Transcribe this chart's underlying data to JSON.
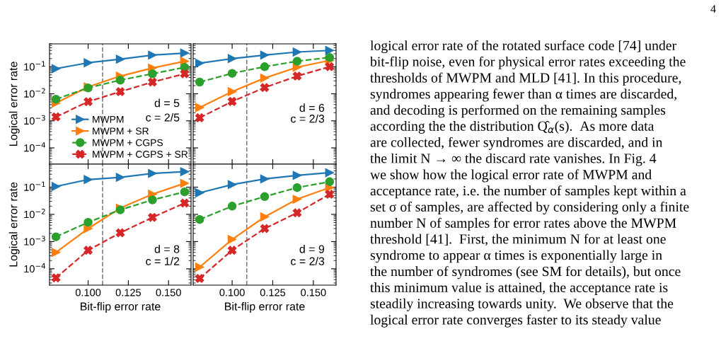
{
  "chart_data": [
    {
      "type": "line",
      "x": [
        0.08,
        0.1,
        0.12,
        0.14,
        0.16
      ],
      "log": "y",
      "grid": false,
      "legend": "bottom",
      "tick_labels": "y",
      "ylabel": "Logical error rate",
      "xlim": [
        0.076,
        0.164
      ],
      "ylim": [
        2.5e-05,
        0.7
      ],
      "xticks": [
        {
          "value": 0.1,
          "label": null
        },
        {
          "value": 0.125,
          "label": null
        },
        {
          "value": 0.15,
          "label": null
        }
      ],
      "yticks": [
        {
          "value": 0.0001,
          "label": "10$^{−4}$"
        },
        {
          "value": 0.001,
          "label": "10$^{−3}$"
        },
        {
          "value": 0.01,
          "label": "10$^{−2}$"
        },
        {
          "value": 0.1,
          "label": "10$^{−1}$"
        }
      ],
      "ref_lines": [
        {
          "axis": "x",
          "value": 0.109,
          "color": "#808080",
          "line_style": "dashed"
        }
      ],
      "annotations": [
        "d = 5",
        "c = 2/5"
      ],
      "series": [
        {
          "name": "MWPM",
          "color": "#1f77b4",
          "marker": "triangle",
          "line_style": "solid",
          "values": [
            0.085,
            0.14,
            0.19,
            0.27,
            0.32
          ]
        },
        {
          "name": "MWPM + SR",
          "color": "#ff7f0e",
          "marker": "triangle",
          "line_style": "solid",
          "values": [
            0.0045,
            0.018,
            0.045,
            0.09,
            0.16
          ]
        },
        {
          "name": "MWPM + CGPS",
          "color": "#2ca02c",
          "marker": "circle",
          "line_style": "dashed",
          "values": [
            0.0063,
            0.0165,
            0.032,
            0.055,
            0.095
          ]
        },
        {
          "name": "MWPM + CGPS + SR",
          "color": "#d62728",
          "marker": "cross",
          "line_style": "dashed",
          "values": [
            0.0014,
            0.0051,
            0.012,
            0.027,
            0.055
          ]
        }
      ]
    },
    {
      "type": "line",
      "x": [
        0.08,
        0.1,
        0.12,
        0.14,
        0.16
      ],
      "log": "y",
      "grid": false,
      "tick_labels": false,
      "xlim": [
        0.076,
        0.164
      ],
      "ylim": [
        2.5e-05,
        0.7
      ],
      "xticks": [
        {
          "value": 0.1,
          "label": null
        },
        {
          "value": 0.125,
          "label": null
        },
        {
          "value": 0.15,
          "label": null
        }
      ],
      "yticks": [
        {
          "value": 0.0001,
          "label": null
        },
        {
          "value": 0.001,
          "label": null
        },
        {
          "value": 0.01,
          "label": null
        },
        {
          "value": 0.1,
          "label": null
        }
      ],
      "ref_lines": [
        {
          "axis": "x",
          "value": 0.109,
          "color": "#808080",
          "line_style": "dashed"
        }
      ],
      "annotations": [
        "d = 6",
        "c = 2/3"
      ],
      "series": [
        {
          "color": "#1f77b4",
          "marker": "triangle",
          "line_style": "solid",
          "values": [
            0.135,
            0.2,
            0.27,
            0.35,
            0.4
          ]
        },
        {
          "color": "#ff7f0e",
          "marker": "triangle",
          "line_style": "solid",
          "values": [
            0.0031,
            0.012,
            0.038,
            0.096,
            0.17
          ]
        },
        {
          "color": "#2ca02c",
          "marker": "circle",
          "line_style": "dashed",
          "values": [
            0.027,
            0.057,
            0.1,
            0.16,
            0.22
          ]
        },
        {
          "color": "#d62728",
          "marker": "cross",
          "line_style": "dashed",
          "values": [
            0.0013,
            0.0052,
            0.017,
            0.045,
            0.1
          ]
        }
      ]
    },
    {
      "type": "line",
      "x": [
        0.08,
        0.1,
        0.12,
        0.14,
        0.16
      ],
      "log": "y",
      "grid": false,
      "xlabel": "Bit-flip error rate",
      "ylabel": "Logical error rate",
      "xlim": [
        0.076,
        0.164
      ],
      "ylim": [
        2.5e-05,
        0.7
      ],
      "xticks": [
        {
          "value": 0.1,
          "label": "0.100"
        },
        {
          "value": 0.125,
          "label": "0.125"
        },
        {
          "value": 0.15,
          "label": "0.150"
        }
      ],
      "yticks": [
        {
          "value": 0.0001,
          "label": "10$^{−4}$"
        },
        {
          "value": 0.001,
          "label": "10$^{−3}$"
        },
        {
          "value": 0.01,
          "label": "10$^{−2}$"
        },
        {
          "value": 0.1,
          "label": "10$^{−1}$"
        }
      ],
      "ref_lines": [
        {
          "axis": "x",
          "value": 0.109,
          "color": "#808080",
          "line_style": "dashed"
        }
      ],
      "annotations": [
        "d = 8",
        "c = 1/2"
      ],
      "series": [
        {
          "color": "#1f77b4",
          "marker": "triangle",
          "line_style": "solid",
          "values": [
            0.106,
            0.19,
            0.23,
            0.32,
            0.37
          ]
        },
        {
          "color": "#ff7f0e",
          "marker": "triangle",
          "line_style": "solid",
          "values": [
            0.0004,
            0.003,
            0.017,
            0.055,
            0.138
          ]
        },
        {
          "color": "#2ca02c",
          "marker": "circle",
          "line_style": "dashed",
          "values": [
            0.0015,
            0.0051,
            0.0147,
            0.034,
            0.067
          ]
        },
        {
          "color": "#d62728",
          "marker": "cross",
          "line_style": "dashed",
          "values": [
            4.6e-05,
            0.00048,
            0.0021,
            0.0077,
            0.026
          ]
        }
      ]
    },
    {
      "type": "line",
      "x": [
        0.08,
        0.1,
        0.12,
        0.14,
        0.16
      ],
      "log": "y",
      "grid": false,
      "tick_labels": "x",
      "xlabel": "Bit-flip error rate",
      "xlim": [
        0.076,
        0.164
      ],
      "ylim": [
        2.5e-05,
        0.7
      ],
      "xticks": [
        {
          "value": 0.1,
          "label": "0.100"
        },
        {
          "value": 0.125,
          "label": "0.125"
        },
        {
          "value": 0.15,
          "label": "0.150"
        }
      ],
      "yticks": [
        {
          "value": 0.0001,
          "label": null
        },
        {
          "value": 0.001,
          "label": null
        },
        {
          "value": 0.01,
          "label": null
        },
        {
          "value": 0.1,
          "label": null
        }
      ],
      "ref_lines": [
        {
          "axis": "x",
          "value": 0.109,
          "color": "#808080",
          "line_style": "dashed"
        }
      ],
      "annotations": [
        "d = 9",
        "c = 2/3"
      ],
      "series": [
        {
          "color": "#1f77b4",
          "marker": "triangle",
          "line_style": "solid",
          "values": [
            0.062,
            0.124,
            0.2,
            0.27,
            0.34
          ]
        },
        {
          "color": "#ff7f0e",
          "marker": "triangle",
          "line_style": "solid",
          "values": [
            0.000115,
            0.0012,
            0.0081,
            0.036,
            0.096
          ]
        },
        {
          "color": "#2ca02c",
          "marker": "circle",
          "line_style": "dashed",
          "values": [
            0.0065,
            0.02,
            0.045,
            0.096,
            0.158
          ]
        },
        {
          "color": "#d62728",
          "marker": "cross",
          "line_style": "dashed",
          "values": [
            4.4e-05,
            0.00048,
            0.003,
            0.0114,
            0.055
          ]
        }
      ]
    },
    {
      "type": "other",
      "annotations": [
        "4",
        "logical error rate of the rotated surface code [74] under",
        "bit-flip noise, even for physical error rates exceeding the",
        "thresholds of MWPM and MLD [41]. In this procedure,",
        "syndromes appearing fewer than α times are discarded,",
        "and decoding is performed on the remaining samples",
        "according the the distribution Q̂$_{α}$(s).  As more data",
        "are collected, fewer syndromes are discarded, and in",
        "the limit N → ∞ the discard rate vanishes. In Fig. 4",
        "we show how the logical error rate of MWPM and",
        "acceptance rate, i.e. the number of samples kept within a",
        "set σ of samples, are affected by considering only a finite",
        "number N of samples for error rates above the MWPM",
        "threshold [41].  First, the minimum N for at least one",
        "syndrome to appear α times is exponentially large in",
        "the number of syndromes (see SM for details), but once",
        "this minimum value is attained, the acceptance rate is",
        "steadily increasing towards unity.  We observe that the",
        "logical error rate converges faster to its steady value"
      ]
    }
  ]
}
